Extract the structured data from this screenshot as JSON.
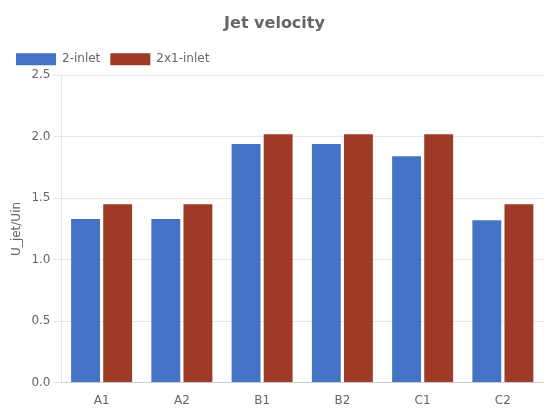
{
  "chart_data": {
    "type": "bar",
    "title": "Jet velocity",
    "ylabel": "U_jet/Uin",
    "categories": [
      "A1",
      "A2",
      "B1",
      "B2",
      "C1",
      "C2"
    ],
    "series": [
      {
        "name": "2-inlet",
        "color": "#4472C4",
        "values": [
          1.33,
          1.33,
          1.94,
          1.94,
          1.84,
          1.32
        ]
      },
      {
        "name": "2x1-inlet",
        "color": "#9E3A26",
        "values": [
          1.45,
          1.45,
          2.02,
          2.02,
          2.02,
          1.45
        ]
      }
    ],
    "ylim": [
      0.0,
      2.5
    ],
    "yticks": [
      {
        "value": 0,
        "label": "0.0"
      },
      0.5,
      {
        "value": 1,
        "label": "1.0"
      },
      1.5,
      {
        "value": 2,
        "label": "2.0"
      },
      2.5
    ],
    "grid": true,
    "legend": "upper left"
  }
}
